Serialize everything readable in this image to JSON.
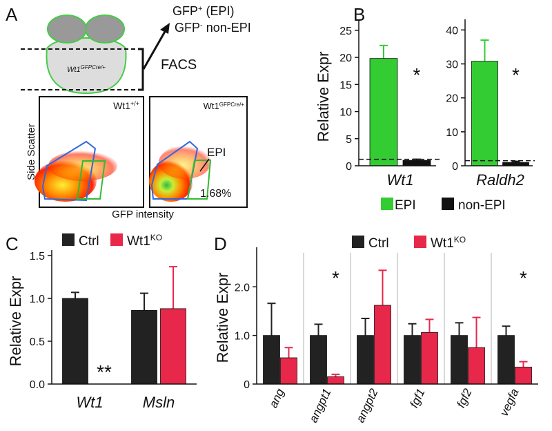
{
  "panels": {
    "letters": [
      "A",
      "B",
      "C",
      "D"
    ],
    "A": {
      "gfp_pos": {
        "base": "GFP",
        "sup": "+",
        "rest": " (EPI)"
      },
      "gfp_neg": {
        "base": "GFP",
        "sup": "-",
        "rest": " non-EPI"
      },
      "embryo_label": {
        "base": "Wt1",
        "sup": "GFPCre/+"
      },
      "facs": "FACS",
      "y_label": "Side Scatter",
      "x_label": "GFP intensity",
      "plot_left_label": {
        "base": "Wt1",
        "sup": "+/+"
      },
      "plot_right_label": {
        "base": "Wt1",
        "sup": "GFPCre/+"
      },
      "gate_label": "EPI",
      "gate_percent": "1.68%"
    }
  },
  "chart_data": [
    {
      "type": "bar",
      "y_label": "Relative Expr",
      "categories": [
        "Wt1"
      ],
      "legend": true,
      "series": [
        {
          "name": "EPI",
          "color": "#33cc33",
          "values": [
            19.8
          ],
          "errors": [
            2.4
          ]
        },
        {
          "name": "non-EPI",
          "color": "#111111",
          "values": [
            1.0
          ],
          "errors": [
            0.2
          ]
        }
      ],
      "ylim": [
        0,
        26
      ],
      "yticks": [
        0,
        5,
        10,
        15,
        20,
        25
      ],
      "reference_line": 1.2,
      "annotations": [
        {
          "text": "*",
          "category": 0
        }
      ]
    },
    {
      "type": "bar",
      "categories": [
        "Raldh2"
      ],
      "series": [
        {
          "color": "#33cc33",
          "values": [
            30.8
          ],
          "errors": [
            6.2
          ]
        },
        {
          "color": "#111111",
          "values": [
            1.0
          ],
          "errors": [
            0.3
          ]
        }
      ],
      "ylim": [
        0,
        41.5
      ],
      "yticks": [
        0,
        10,
        20,
        30,
        40
      ],
      "reference_line": 1.5,
      "annotations": [
        {
          "text": "*",
          "category": 0
        }
      ]
    },
    {
      "type": "bar",
      "y_label": "Relative Expr",
      "categories": [
        "Wt1",
        "Msln"
      ],
      "legend": true,
      "series": [
        {
          "name": "Ctrl",
          "color": "#222222",
          "values": [
            1.0,
            0.86
          ],
          "errors": [
            0.07,
            0.2
          ]
        },
        {
          "name": "Wt1",
          "name_sup": "KO",
          "color": "#e8284a",
          "values": [
            0,
            0.88
          ],
          "errors": [
            null,
            0.49
          ]
        }
      ],
      "ylim": [
        0,
        1.5
      ],
      "yticks": [
        {
          "value": 0,
          "label": "0.0"
        },
        0.5,
        {
          "value": 1,
          "label": "1.0"
        },
        1.5
      ],
      "annotations": [
        {
          "text": "**",
          "category": 0
        }
      ]
    },
    {
      "type": "bar",
      "y_label": "Relative Expr",
      "categories": [
        "ang",
        "angpt1",
        "angpt2",
        "fgf1",
        "fgf2",
        "vegfa"
      ],
      "legend": true,
      "series": [
        {
          "name": "Ctrl",
          "color": "#222222",
          "values": [
            1.0,
            1.0,
            1.0,
            1.0,
            1.0,
            1.0
          ],
          "errors": [
            0.66,
            0.23,
            0.35,
            0.24,
            0.26,
            0.19
          ]
        },
        {
          "name": "Wt1",
          "name_sup": "KO",
          "color": "#e8284a",
          "values": [
            0.54,
            0.15,
            1.62,
            1.06,
            0.75,
            0.35
          ],
          "errors": [
            0.21,
            0.05,
            0.72,
            0.27,
            0.62,
            0.11
          ]
        }
      ],
      "ylim": [
        0,
        2.7
      ],
      "yticks": [
        0,
        {
          "value": 1,
          "label": "1.0"
        },
        {
          "value": 2,
          "label": "2.0"
        }
      ],
      "annotations": [
        {
          "text": "*",
          "category": 1
        },
        {
          "text": "*",
          "category": 5
        }
      ]
    }
  ]
}
